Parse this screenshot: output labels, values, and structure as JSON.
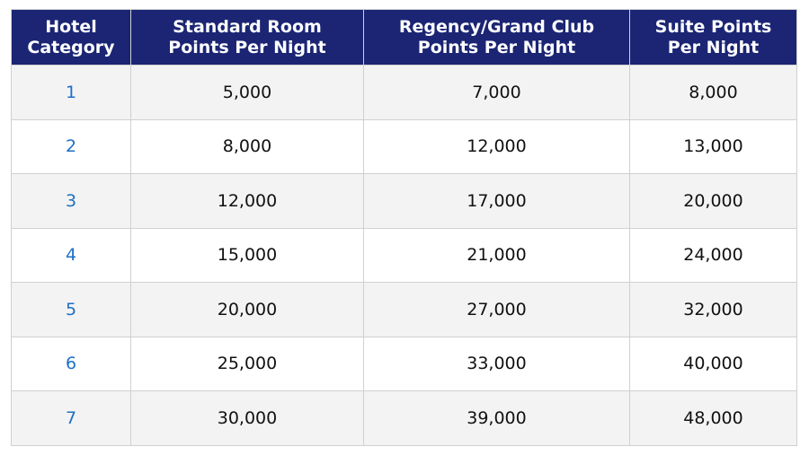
{
  "table": {
    "headers": [
      [
        "Hotel",
        "Category"
      ],
      [
        "Standard Room",
        "Points Per Night"
      ],
      [
        "Regency/Grand Club",
        "Points Per Night"
      ],
      [
        "Suite Points",
        "Per Night"
      ]
    ],
    "rows": [
      [
        "1",
        "5,000",
        "7,000",
        "8,000"
      ],
      [
        "2",
        "8,000",
        "12,000",
        "13,000"
      ],
      [
        "3",
        "12,000",
        "17,000",
        "20,000"
      ],
      [
        "4",
        "15,000",
        "21,000",
        "24,000"
      ],
      [
        "5",
        "20,000",
        "27,000",
        "32,000"
      ],
      [
        "6",
        "25,000",
        "33,000",
        "40,000"
      ],
      [
        "7",
        "30,000",
        "39,000",
        "48,000"
      ]
    ]
  }
}
